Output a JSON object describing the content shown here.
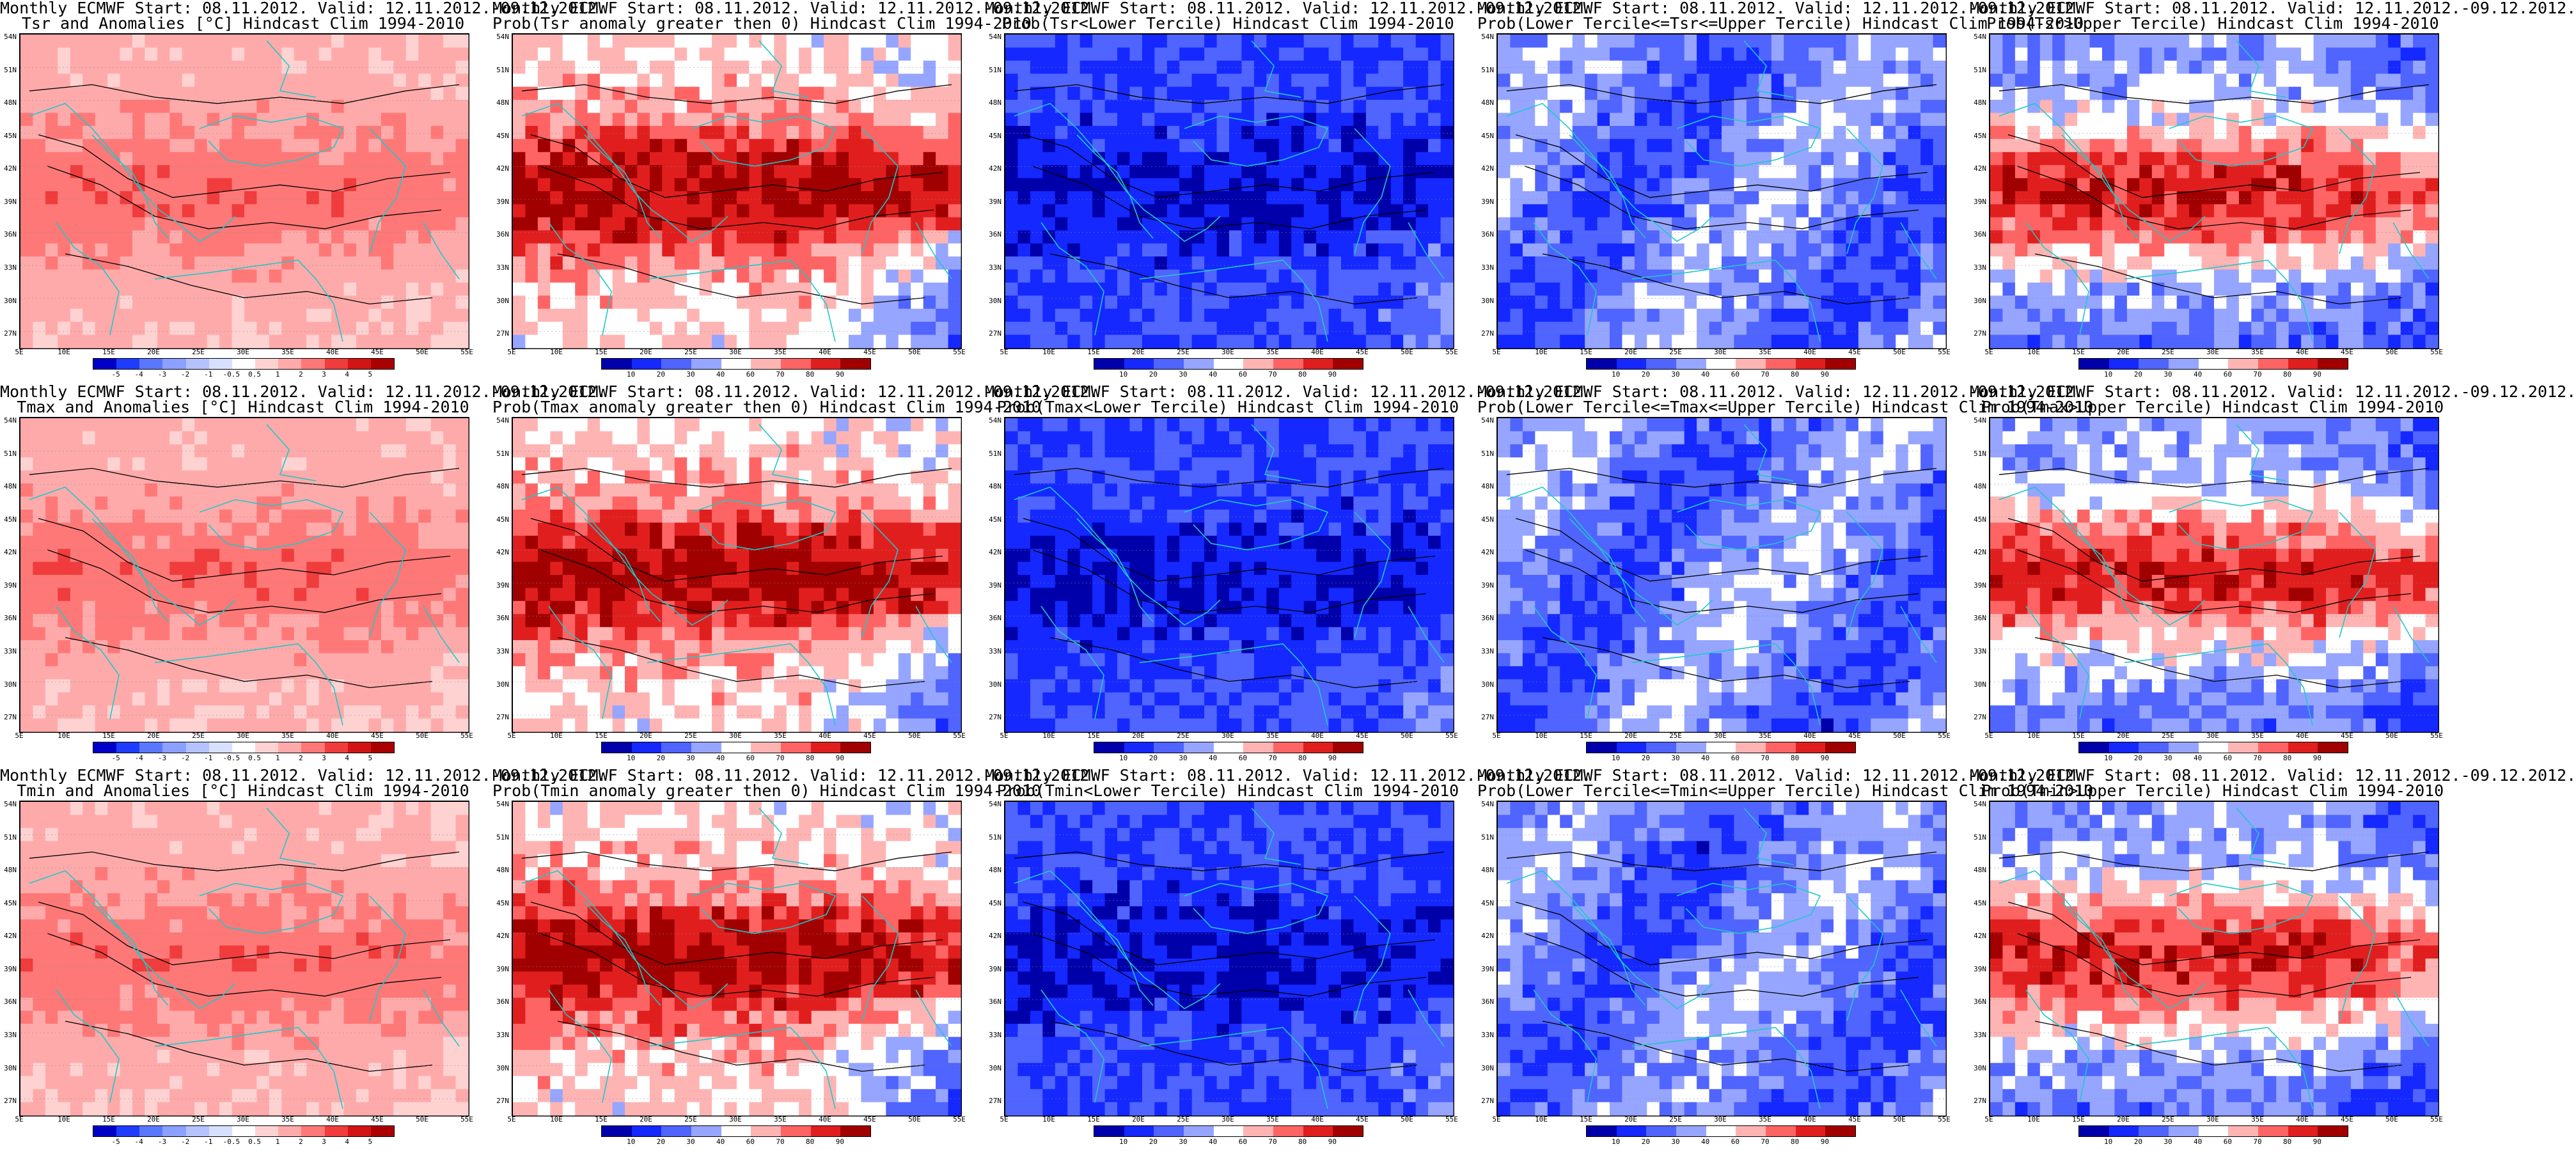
{
  "figure": {
    "rows": [
      {
        "row": "tsr",
        "panels": [
          {
            "title1": "Monthly ECMWF Start: 08.11.2012. Valid: 12.11.2012.-09.12.2012.",
            "title2": "Tsr and Anomalies [°C] Hindcast Clim 1994-2010",
            "scheme": "anomaly"
          },
          {
            "title1": "Monthly ECMWF Start: 08.11.2012. Valid: 12.11.2012.-09.12.2012.",
            "title2": "Prob(Tsr anomaly greater then 0) Hindcast Clim 1994-2010",
            "scheme": "prob_hot"
          },
          {
            "title1": "Monthly ECMWF Start: 08.11.2012. Valid: 12.11.2012.-09.12.2012.",
            "title2": "Prob(Tsr<Lower Tercile) Hindcast Clim 1994-2010",
            "scheme": "prob_cold"
          },
          {
            "title1": "Monthly ECMWF Start: 08.11.2012. Valid: 12.11.2012.-09.12.2012.",
            "title2": "Prob(Lower Tercile<=Tsr<=Upper Tercile) Hindcast Clim 1994-2010",
            "scheme": "prob_mid"
          },
          {
            "title1": "Monthly ECMWF Start: 08.11.2012. Valid: 12.11.2012.-09.12.2012.",
            "title2": "Prob(Tsr>Upper Tercile) Hindcast Clim 1994-2010",
            "scheme": "prob_upper"
          }
        ]
      },
      {
        "row": "tmax",
        "panels": [
          {
            "title1": "Monthly ECMWF Start: 08.11.2012. Valid: 12.11.2012.-09.12.2012.",
            "title2": "Tmax and Anomalies [°C] Hindcast Clim 1994-2010",
            "scheme": "anomaly"
          },
          {
            "title1": "Monthly ECMWF Start: 08.11.2012. Valid: 12.11.2012.-09.12.2012.",
            "title2": "Prob(Tmax anomaly greater then 0) Hindcast Clim 1994-2010",
            "scheme": "prob_hot"
          },
          {
            "title1": "Monthly ECMWF Start: 08.11.2012. Valid: 12.11.2012.-09.12.2012.",
            "title2": "Prob(Tmax<Lower Tercile) Hindcast Clim 1994-2010",
            "scheme": "prob_cold"
          },
          {
            "title1": "Monthly ECMWF Start: 08.11.2012. Valid: 12.11.2012.-09.12.2012.",
            "title2": "Prob(Lower Tercile<=Tmax<=Upper Tercile) Hindcast Clim 1994-2010",
            "scheme": "prob_mid"
          },
          {
            "title1": "Monthly ECMWF Start: 08.11.2012. Valid: 12.11.2012.-09.12.2012.",
            "title2": "Prob(Tmax>Upper Tercile) Hindcast Clim 1994-2010",
            "scheme": "prob_upper"
          }
        ]
      },
      {
        "row": "tmin",
        "panels": [
          {
            "title1": "Monthly ECMWF Start: 08.11.2012. Valid: 12.11.2012.-09.12.2012.",
            "title2": "Tmin and Anomalies [°C] Hindcast Clim 1994-2010",
            "scheme": "anomaly"
          },
          {
            "title1": "Monthly ECMWF Start: 08.11.2012. Valid: 12.11.2012.-09.12.2012.",
            "title2": "Prob(Tmin anomaly greater then 0) Hindcast Clim 1994-2010",
            "scheme": "prob_hot"
          },
          {
            "title1": "Monthly ECMWF Start: 08.11.2012. Valid: 12.11.2012.-09.12.2012.",
            "title2": "Prob(Tmin<Lower Tercile) Hindcast Clim 1994-2010",
            "scheme": "prob_cold"
          },
          {
            "title1": "Monthly ECMWF Start: 08.11.2012. Valid: 12.11.2012.-09.12.2012.",
            "title2": "Prob(Lower Tercile<=Tmin<=Upper Tercile) Hindcast Clim 1994-2010",
            "scheme": "prob_mid"
          },
          {
            "title1": "Monthly ECMWF Start: 08.11.2012. Valid: 12.11.2012.-09.12.2012.",
            "title2": "Prob(Tmin>Upper Tercile) Hindcast Clim 1994-2010",
            "scheme": "prob_upper"
          }
        ]
      }
    ],
    "lat_labels": [
      "54N",
      "51N",
      "48N",
      "45N",
      "42N",
      "39N",
      "36N",
      "33N",
      "30N",
      "27N"
    ],
    "lon_labels": [
      "5E",
      "10E",
      "15E",
      "20E",
      "25E",
      "30E",
      "35E",
      "40E",
      "45E",
      "50E",
      "55E"
    ],
    "colorbars": {
      "anomaly": {
        "labels": [
          "-5",
          "-4",
          "-3",
          "-2",
          "-1",
          "-0.5",
          "0.5",
          "1",
          "2",
          "3",
          "4",
          "5"
        ],
        "colors": [
          "#0000c8",
          "#1e3cff",
          "#5a78ff",
          "#8ca0ff",
          "#b4c3ff",
          "#d7e0ff",
          "#ffffff",
          "#ffd2d2",
          "#ffaaaa",
          "#ff7878",
          "#f03c3c",
          "#d21414",
          "#aa0000"
        ]
      },
      "prob": {
        "labels": [
          "10",
          "20",
          "30",
          "40",
          "60",
          "70",
          "80",
          "90"
        ],
        "colors": [
          "#0000aa",
          "#1428ff",
          "#5064ff",
          "#96a5ff",
          "#ffffff",
          "#ffb4b4",
          "#ff6464",
          "#e11e1e",
          "#a00000"
        ]
      }
    },
    "colors": {
      "coast_line": "#20c8c8",
      "contour_line": "#000000"
    }
  }
}
